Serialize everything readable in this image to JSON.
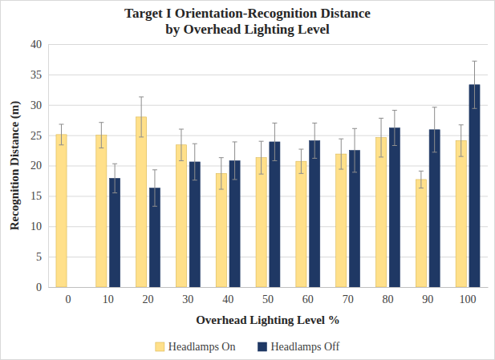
{
  "chart_data": {
    "type": "bar",
    "title": "Target I Orientation-Recognition Distance by Overhead Lighting Level",
    "x_label": "Overhead Lighting Level %",
    "y_label": "Recognition Distance (m)",
    "categories": [
      "0",
      "10",
      "20",
      "30",
      "40",
      "50",
      "60",
      "70",
      "80",
      "90",
      "100"
    ],
    "series": [
      {
        "name": "Headlamps On",
        "color": "#ffe08a",
        "values": [
          25.1,
          25.0,
          28.0,
          23.4,
          18.7,
          21.3,
          20.7,
          21.9,
          24.6,
          17.7,
          24.1
        ],
        "errors": [
          1.7,
          2.1,
          3.3,
          2.6,
          2.6,
          2.7,
          2.0,
          2.5,
          3.2,
          1.4,
          2.6
        ]
      },
      {
        "name": "Headlamps Off",
        "color": "#1f3864",
        "values": [
          null,
          17.9,
          16.3,
          20.6,
          20.8,
          23.9,
          24.1,
          22.5,
          26.2,
          25.9,
          33.3
        ],
        "errors": [
          null,
          2.4,
          3.0,
          3.0,
          3.1,
          3.1,
          2.9,
          3.6,
          2.9,
          3.7,
          3.9
        ]
      }
    ],
    "ylim": [
      0,
      40
    ],
    "yticks": [
      0,
      5,
      10,
      15,
      20,
      25,
      30,
      35,
      40
    ],
    "grid": true,
    "legend": "bottom"
  }
}
